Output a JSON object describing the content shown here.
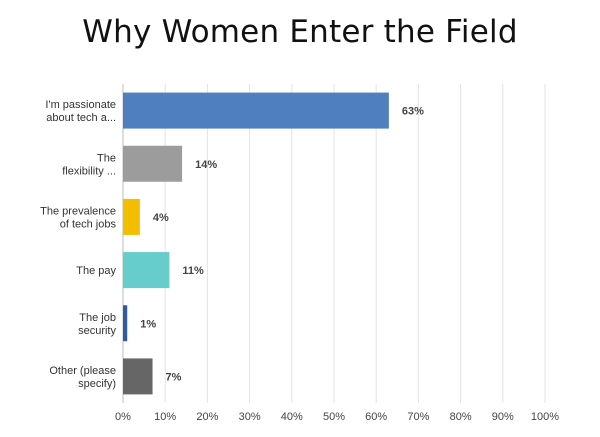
{
  "chart_data": {
    "type": "bar",
    "orientation": "horizontal",
    "title": "Why Women Enter the Field",
    "categories": [
      [
        "I'm passionate",
        "about tech a..."
      ],
      [
        "The",
        "flexibility ..."
      ],
      [
        "The prevalence",
        "of tech jobs"
      ],
      [
        "The pay"
      ],
      [
        "The job",
        "security"
      ],
      [
        "Other (please",
        "specify)"
      ]
    ],
    "values": [
      63,
      14,
      4,
      11,
      1,
      7
    ],
    "value_labels": [
      "63%",
      "14%",
      "4%",
      "11%",
      "1%",
      "7%"
    ],
    "colors": [
      "#4f7fbf",
      "#9c9c9c",
      "#f5bd00",
      "#66cccc",
      "#2e5c9e",
      "#666666"
    ],
    "xlim": [
      0,
      100
    ],
    "ticks": [
      0,
      10,
      20,
      30,
      40,
      50,
      60,
      70,
      80,
      90,
      100
    ],
    "tick_labels": [
      "0%",
      "10%",
      "20%",
      "30%",
      "40%",
      "50%",
      "60%",
      "70%",
      "80%",
      "90%",
      "100%"
    ],
    "grid": true,
    "legend": "none"
  }
}
